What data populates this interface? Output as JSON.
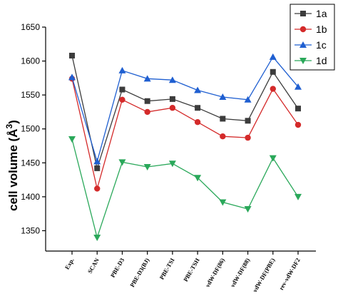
{
  "chart_data": {
    "type": "line",
    "title": "",
    "xlabel": "",
    "ylabel": "cell volume (Å",
    "ylabel_superscript": "3",
    "ylabel_suffix": ")",
    "ylim": [
      1320,
      1650
    ],
    "yticks": [
      1350,
      1400,
      1450,
      1500,
      1550,
      1600,
      1650
    ],
    "grid": false,
    "legend_position": "top-right",
    "categories": [
      "Exp.",
      "SCAN",
      "PBE-D3",
      "PBE-D3(BJ)",
      "PBE-TSI",
      "PBE-TSH",
      "vdW-DF(86)",
      "vdW-DF(88)",
      "vdW-DF(PBE)",
      "rev-vdW-DF2"
    ],
    "series": [
      {
        "name": "1a",
        "color": "#3c3c3c",
        "marker": "square",
        "values": [
          1608,
          1442,
          1558,
          1541,
          1544,
          1531,
          1515,
          1512,
          1584,
          1530
        ]
      },
      {
        "name": "1b",
        "color": "#d42a2a",
        "marker": "circle",
        "values": [
          1574,
          1412,
          1543,
          1525,
          1531,
          1510,
          1489,
          1487,
          1559,
          1506
        ]
      },
      {
        "name": "1c",
        "color": "#1f5fd1",
        "marker": "triangle-up",
        "values": [
          1576,
          1452,
          1586,
          1574,
          1572,
          1557,
          1547,
          1543,
          1606,
          1562
        ]
      },
      {
        "name": "1d",
        "color": "#2aa85a",
        "marker": "triangle-down",
        "values": [
          1485,
          1340,
          1451,
          1444,
          1449,
          1428,
          1392,
          1382,
          1457,
          1400
        ]
      }
    ]
  }
}
